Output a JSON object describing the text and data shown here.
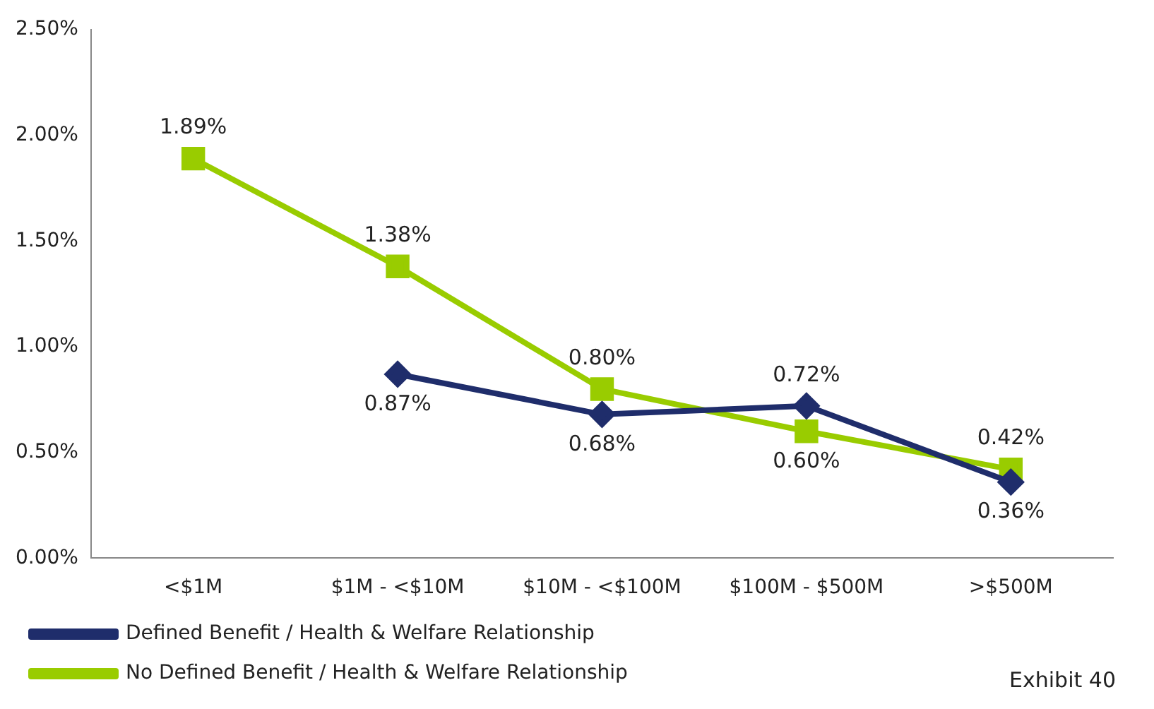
{
  "chart_data": {
    "type": "line",
    "categories": [
      "<$1M",
      "$1M - <$10M",
      "$10M - <$100M",
      "$100M - $500M",
      ">$500M"
    ],
    "series": [
      {
        "name": "Defined Benefit / Health & Welfare Relationship",
        "color": "#1f2d6b",
        "marker": "diamond",
        "values": [
          null,
          0.87,
          0.68,
          0.72,
          0.36
        ],
        "value_labels": [
          null,
          "0.87%",
          "0.68%",
          "0.72%",
          "0.36%"
        ]
      },
      {
        "name": "No Defined Benefit / Health & Welfare Relationship",
        "color": "#99cc00",
        "marker": "square",
        "values": [
          1.89,
          1.38,
          0.8,
          0.6,
          0.42
        ],
        "value_labels": [
          "1.89%",
          "1.38%",
          "0.80%",
          "0.60%",
          "0.42%"
        ]
      }
    ],
    "ylim": [
      0,
      2.5
    ],
    "yticks": [
      {
        "value": 0,
        "label": "0.00%"
      },
      {
        "value": 0.5,
        "label": "0.50%"
      },
      {
        "value": 1,
        "label": "1.00%"
      },
      {
        "value": 1.5,
        "label": "1.50%"
      },
      {
        "value": 2,
        "label": "2.00%"
      },
      {
        "value": 2.5,
        "label": "2.50%"
      }
    ],
    "grid": false,
    "legend": "bottom",
    "annotations": [
      "Exhibit 40"
    ]
  }
}
